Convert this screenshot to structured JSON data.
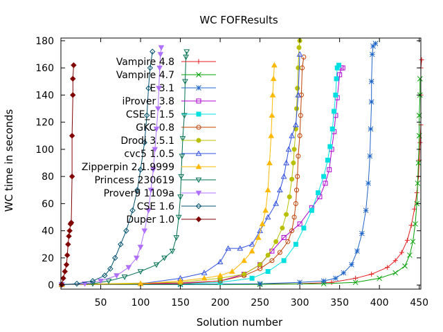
{
  "chart_data": {
    "type": "line",
    "title": "WC FOFResults",
    "xlabel": "Solution number",
    "ylabel": "WC time in seconds",
    "xlim": [
      0,
      452
    ],
    "ylim": [
      -3,
      182
    ],
    "xticks": [
      50,
      100,
      150,
      200,
      250,
      300,
      350,
      400,
      450
    ],
    "yticks": [
      0,
      20,
      40,
      60,
      80,
      100,
      120,
      140,
      160,
      180
    ],
    "grid": false,
    "legend_position": "top-left",
    "series": [
      {
        "name": "Vampire 4.8",
        "color": "#e41a1c",
        "marker": "plus",
        "points": [
          [
            1,
            0.3
          ],
          [
            100,
            0.4
          ],
          [
            200,
            0.6
          ],
          [
            300,
            1.0
          ],
          [
            340,
            2
          ],
          [
            370,
            5
          ],
          [
            390,
            8
          ],
          [
            410,
            13
          ],
          [
            420,
            18
          ],
          [
            428,
            24
          ],
          [
            435,
            33
          ],
          [
            440,
            44
          ],
          [
            444,
            56
          ],
          [
            447,
            68
          ],
          [
            449,
            80
          ],
          [
            450,
            92
          ],
          [
            451,
            105
          ],
          [
            452,
            118
          ],
          [
            452,
            140
          ],
          [
            452,
            160
          ],
          [
            453,
            166
          ]
        ]
      },
      {
        "name": "Vampire 4.7",
        "color": "#00a000",
        "marker": "x",
        "points": [
          [
            1,
            0.3
          ],
          [
            150,
            0.3
          ],
          [
            250,
            0.5
          ],
          [
            330,
            1
          ],
          [
            370,
            2
          ],
          [
            400,
            5
          ],
          [
            420,
            9
          ],
          [
            432,
            14
          ],
          [
            438,
            22
          ],
          [
            442,
            32
          ],
          [
            445,
            45
          ],
          [
            447,
            60
          ],
          [
            448,
            75
          ],
          [
            449,
            90
          ],
          [
            450,
            110
          ],
          [
            450,
            125
          ],
          [
            451,
            140
          ],
          [
            451,
            152
          ]
        ]
      },
      {
        "name": "E 3.1",
        "color": "#1e64c8",
        "marker": "asterisk",
        "points": [
          [
            1,
            0.3
          ],
          [
            150,
            0.5
          ],
          [
            250,
            1
          ],
          [
            300,
            2
          ],
          [
            330,
            3
          ],
          [
            345,
            5
          ],
          [
            355,
            9
          ],
          [
            365,
            15
          ],
          [
            372,
            25
          ],
          [
            378,
            38
          ],
          [
            383,
            55
          ],
          [
            386,
            75
          ],
          [
            388,
            95
          ],
          [
            389,
            115
          ],
          [
            390,
            135
          ],
          [
            390,
            150
          ],
          [
            391,
            170
          ],
          [
            392,
            176
          ],
          [
            395,
            178
          ]
        ]
      },
      {
        "name": "iProver 3.8",
        "color": "#b000d0",
        "marker": "square",
        "points": [
          [
            1,
            0.3
          ],
          [
            150,
            1.5
          ],
          [
            200,
            3
          ],
          [
            230,
            8
          ],
          [
            250,
            15
          ],
          [
            265,
            25
          ],
          [
            280,
            35
          ],
          [
            300,
            45
          ],
          [
            315,
            57
          ],
          [
            325,
            65
          ],
          [
            332,
            75
          ],
          [
            337,
            85
          ],
          [
            340,
            100
          ],
          [
            343,
            113
          ],
          [
            345,
            125
          ],
          [
            347,
            138
          ],
          [
            350,
            155
          ],
          [
            352,
            160
          ],
          [
            354,
            160
          ]
        ]
      },
      {
        "name": "CSE_E 1.5",
        "color": "#00e0e0",
        "marker": "filled-square",
        "points": [
          [
            1,
            0.3
          ],
          [
            150,
            0.8
          ],
          [
            200,
            2
          ],
          [
            240,
            5
          ],
          [
            260,
            10
          ],
          [
            280,
            18
          ],
          [
            295,
            30
          ],
          [
            305,
            42
          ],
          [
            315,
            55
          ],
          [
            323,
            68
          ],
          [
            330,
            80
          ],
          [
            335,
            92
          ],
          [
            338,
            102
          ],
          [
            341,
            115
          ],
          [
            343,
            128
          ],
          [
            345,
            140
          ],
          [
            346,
            152
          ],
          [
            347,
            160
          ],
          [
            349,
            162
          ]
        ]
      },
      {
        "name": "GKC 0.8",
        "color": "#c04000",
        "marker": "circle",
        "points": [
          [
            1,
            0.3
          ],
          [
            150,
            1
          ],
          [
            200,
            3
          ],
          [
            230,
            7
          ],
          [
            250,
            12
          ],
          [
            265,
            18
          ],
          [
            275,
            24
          ],
          [
            285,
            32
          ],
          [
            290,
            40
          ],
          [
            293,
            50
          ],
          [
            295,
            60
          ],
          [
            296,
            70
          ],
          [
            297,
            80
          ],
          [
            298,
            95
          ],
          [
            300,
            110
          ],
          [
            301,
            125
          ],
          [
            302,
            140
          ],
          [
            303,
            160
          ],
          [
            305,
            168
          ]
        ]
      },
      {
        "name": "Drodi 3.5.1",
        "color": "#b8c000",
        "marker": "filled-circle",
        "points": [
          [
            1,
            0.3
          ],
          [
            150,
            2
          ],
          [
            200,
            5
          ],
          [
            230,
            8
          ],
          [
            250,
            15
          ],
          [
            260,
            22
          ],
          [
            270,
            32
          ],
          [
            278,
            42
          ],
          [
            283,
            52
          ],
          [
            287,
            65
          ],
          [
            290,
            78
          ],
          [
            292,
            90
          ],
          [
            293,
            100
          ],
          [
            295,
            115
          ],
          [
            296,
            130
          ],
          [
            297,
            145
          ],
          [
            298,
            160
          ],
          [
            299,
            175
          ],
          [
            300,
            180
          ]
        ]
      },
      {
        "name": "cvc5 1.0.5",
        "color": "#3050e0",
        "marker": "triangle",
        "points": [
          [
            1,
            0.3
          ],
          [
            100,
            1
          ],
          [
            150,
            5
          ],
          [
            180,
            9
          ],
          [
            200,
            17
          ],
          [
            210,
            27
          ],
          [
            225,
            27
          ],
          [
            240,
            30
          ],
          [
            250,
            40
          ],
          [
            260,
            50
          ],
          [
            270,
            60
          ],
          [
            275,
            70
          ],
          [
            280,
            80
          ],
          [
            283,
            90
          ],
          [
            286,
            100
          ],
          [
            290,
            110
          ],
          [
            295,
            118
          ],
          [
            298,
            140
          ],
          [
            300,
            170
          ]
        ]
      },
      {
        "name": "Zipperpin 2.1.9999",
        "color": "#ffb800",
        "marker": "filled-triangle",
        "points": [
          [
            1,
            0.3
          ],
          [
            100,
            1
          ],
          [
            150,
            3
          ],
          [
            180,
            5
          ],
          [
            200,
            7
          ],
          [
            215,
            10
          ],
          [
            230,
            18
          ],
          [
            240,
            25
          ],
          [
            248,
            35
          ],
          [
            253,
            45
          ],
          [
            257,
            55
          ],
          [
            260,
            70
          ],
          [
            262,
            90
          ],
          [
            264,
            110
          ],
          [
            265,
            125
          ],
          [
            266,
            140
          ],
          [
            267,
            152
          ],
          [
            268,
            162
          ]
        ]
      },
      {
        "name": "Princess 230619",
        "color": "#007050",
        "marker": "triangle-down",
        "points": [
          [
            1,
            0.3
          ],
          [
            40,
            1
          ],
          [
            60,
            3
          ],
          [
            80,
            6
          ],
          [
            100,
            10
          ],
          [
            120,
            15
          ],
          [
            130,
            20
          ],
          [
            140,
            25
          ],
          [
            145,
            35
          ],
          [
            148,
            50
          ],
          [
            150,
            65
          ],
          [
            151,
            80
          ],
          [
            152,
            95
          ],
          [
            153,
            108
          ],
          [
            155,
            125
          ],
          [
            156,
            150
          ],
          [
            157,
            168
          ],
          [
            158,
            172
          ]
        ]
      },
      {
        "name": "Prover9 1109a",
        "color": "#b070ff",
        "marker": "filled-triangle-down",
        "points": [
          [
            1,
            0.3
          ],
          [
            30,
            1
          ],
          [
            50,
            3
          ],
          [
            70,
            7
          ],
          [
            85,
            13
          ],
          [
            95,
            20
          ],
          [
            100,
            28
          ],
          [
            105,
            40
          ],
          [
            110,
            55
          ],
          [
            113,
            70
          ],
          [
            116,
            85
          ],
          [
            118,
            100
          ],
          [
            120,
            115
          ],
          [
            122,
            130
          ],
          [
            123,
            145
          ],
          [
            124,
            160
          ],
          [
            125,
            170
          ],
          [
            126,
            175
          ]
        ]
      },
      {
        "name": "CSE 1.6",
        "color": "#005070",
        "marker": "diamond",
        "points": [
          [
            1,
            0.3
          ],
          [
            20,
            1
          ],
          [
            40,
            3
          ],
          [
            55,
            7
          ],
          [
            62,
            12
          ],
          [
            68,
            20
          ],
          [
            75,
            30
          ],
          [
            82,
            40
          ],
          [
            90,
            55
          ],
          [
            96,
            70
          ],
          [
            100,
            85
          ],
          [
            105,
            105
          ],
          [
            108,
            125
          ],
          [
            110,
            145
          ],
          [
            112,
            160
          ],
          [
            115,
            172
          ]
        ]
      },
      {
        "name": "Duper 1.0",
        "color": "#800000",
        "marker": "filled-diamond",
        "points": [
          [
            1,
            0.3
          ],
          [
            3,
            5
          ],
          [
            5,
            10
          ],
          [
            7,
            15
          ],
          [
            8,
            22
          ],
          [
            9,
            30
          ],
          [
            10,
            36
          ],
          [
            11,
            40
          ],
          [
            12,
            45
          ],
          [
            13,
            46
          ],
          [
            14,
            80
          ],
          [
            14,
            110
          ],
          [
            15,
            140
          ],
          [
            15,
            152
          ],
          [
            16,
            162
          ]
        ]
      }
    ]
  }
}
